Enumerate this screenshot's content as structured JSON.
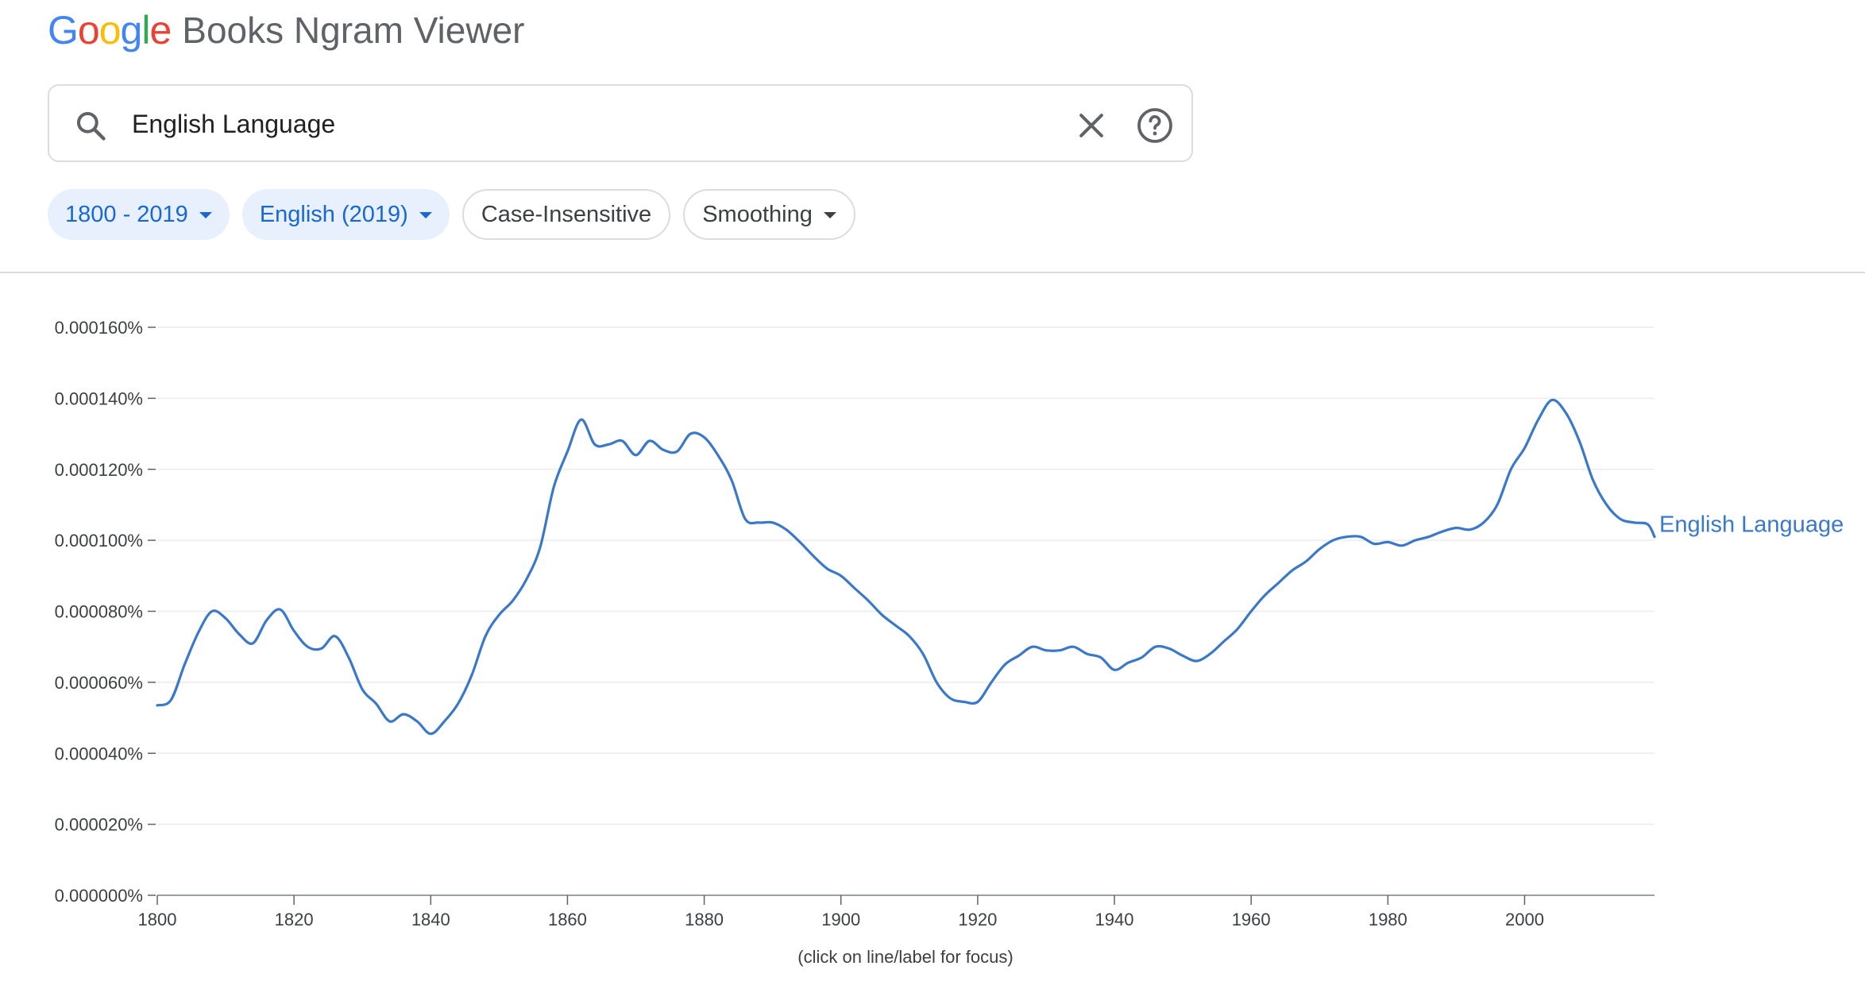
{
  "header": {
    "logo_letters": [
      {
        "char": "G",
        "color": "#4285F4"
      },
      {
        "char": "o",
        "color": "#EA4335"
      },
      {
        "char": "o",
        "color": "#FBBC05"
      },
      {
        "char": "g",
        "color": "#4285F4"
      },
      {
        "char": "l",
        "color": "#34A853"
      },
      {
        "char": "e",
        "color": "#EA4335"
      }
    ],
    "app_title": "Books Ngram Viewer"
  },
  "search": {
    "value": "English Language",
    "left_icon": "search-icon",
    "clear_icon": "close-icon",
    "help_icon": "help-circle-icon"
  },
  "chips": {
    "year_range": "1800 - 2019",
    "corpus": "English (2019)",
    "case": "Case-Insensitive",
    "smoothing": "Smoothing"
  },
  "colors": {
    "series": "#3a78c9",
    "chip_active_bg": "#e8f0fe",
    "chip_active_text": "#1967d2",
    "grid": "#ececec"
  },
  "chart_data": {
    "type": "line",
    "title": "",
    "xlabel": "",
    "ylabel": "",
    "xlim": [
      1800,
      2019
    ],
    "ylim": [
      0,
      0.00016
    ],
    "x_ticks": [
      "1800",
      "1820",
      "1840",
      "1860",
      "1880",
      "1900",
      "1920",
      "1940",
      "1960",
      "1980",
      "2000"
    ],
    "y_ticks": [
      "0.000000%",
      "0.000020%",
      "0.000040%",
      "0.000060%",
      "0.000080%",
      "0.000100%",
      "0.000120%",
      "0.000140%",
      "0.000160%"
    ],
    "grid": true,
    "series": [
      {
        "name": "English Language",
        "x": [
          1800,
          1802,
          1804,
          1806,
          1808,
          1810,
          1812,
          1814,
          1816,
          1818,
          1820,
          1822,
          1824,
          1826,
          1828,
          1830,
          1832,
          1834,
          1836,
          1838,
          1840,
          1842,
          1844,
          1846,
          1848,
          1850,
          1852,
          1854,
          1856,
          1858,
          1860,
          1862,
          1864,
          1866,
          1868,
          1870,
          1872,
          1874,
          1876,
          1878,
          1880,
          1882,
          1884,
          1886,
          1888,
          1890,
          1892,
          1894,
          1896,
          1898,
          1900,
          1902,
          1904,
          1906,
          1908,
          1910,
          1912,
          1914,
          1916,
          1918,
          1920,
          1922,
          1924,
          1926,
          1928,
          1930,
          1932,
          1934,
          1936,
          1938,
          1940,
          1942,
          1944,
          1946,
          1948,
          1950,
          1952,
          1954,
          1956,
          1958,
          1960,
          1962,
          1964,
          1966,
          1968,
          1970,
          1972,
          1974,
          1976,
          1978,
          1980,
          1982,
          1984,
          1986,
          1988,
          1990,
          1992,
          1994,
          1996,
          1998,
          2000,
          2002,
          2004,
          2006,
          2008,
          2010,
          2012,
          2014,
          2016,
          2018,
          2019
        ],
        "values": [
          5.35e-05,
          5.5e-05,
          6.5e-05,
          7.4e-05,
          8e-05,
          7.8e-05,
          7.35e-05,
          7.1e-05,
          7.75e-05,
          8.05e-05,
          7.45e-05,
          7e-05,
          6.95e-05,
          7.3e-05,
          6.7e-05,
          5.8e-05,
          5.4e-05,
          4.9e-05,
          5.1e-05,
          4.9e-05,
          4.55e-05,
          4.9e-05,
          5.4e-05,
          6.2e-05,
          7.3e-05,
          7.9e-05,
          8.3e-05,
          8.9e-05,
          9.8e-05,
          0.000115,
          0.000125,
          0.000134,
          0.000127,
          0.000127,
          0.000128,
          0.000124,
          0.000128,
          0.0001255,
          0.000125,
          0.00013,
          0.000129,
          0.000124,
          0.000117,
          0.000106,
          0.000105,
          0.000105,
          0.000103,
          9.95e-05,
          9.55e-05,
          9.2e-05,
          9e-05,
          8.65e-05,
          8.3e-05,
          7.9e-05,
          7.6e-05,
          7.3e-05,
          6.8e-05,
          6e-05,
          5.55e-05,
          5.45e-05,
          5.45e-05,
          6e-05,
          6.5e-05,
          6.75e-05,
          7e-05,
          6.9e-05,
          6.9e-05,
          7e-05,
          6.8e-05,
          6.7e-05,
          6.35e-05,
          6.55e-05,
          6.7e-05,
          7e-05,
          6.95e-05,
          6.75e-05,
          6.6e-05,
          6.8e-05,
          7.15e-05,
          7.5e-05,
          8e-05,
          8.45e-05,
          8.8e-05,
          9.15e-05,
          9.4e-05,
          9.75e-05,
          0.0001,
          0.000101,
          0.000101,
          9.9e-05,
          9.95e-05,
          9.85e-05,
          0.0001,
          0.000101,
          0.0001025,
          0.0001035,
          0.000103,
          0.000105,
          0.00011,
          0.00012,
          0.000126,
          0.000134,
          0.0001395,
          0.000136,
          0.000128,
          0.000117,
          0.00011,
          0.000106,
          0.000105,
          0.0001045,
          0.000101
        ]
      }
    ],
    "footnote": "(click on line/label for focus)"
  }
}
